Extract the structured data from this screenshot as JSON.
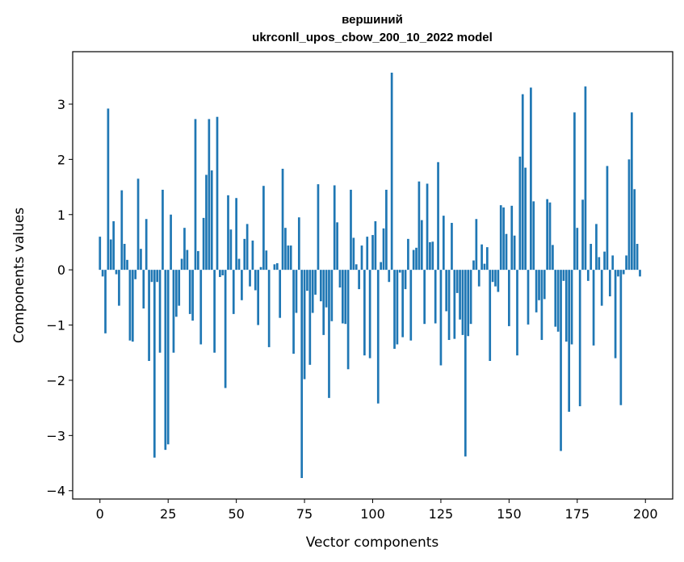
{
  "chart_data": {
    "type": "bar",
    "title_line1": "вершиний",
    "title_line2": "ukrconll_upos_cbow_200_10_2022 model",
    "xlabel": "Vector components",
    "ylabel": "Components values",
    "xlim": [
      -10,
      210
    ],
    "ylim": [
      -4.15,
      3.95
    ],
    "xticks": [
      0,
      25,
      50,
      75,
      100,
      125,
      150,
      175,
      200
    ],
    "xtick_labels": [
      "0",
      "25",
      "50",
      "75",
      "100",
      "125",
      "150",
      "175",
      "200"
    ],
    "yticks": [
      -4,
      -3,
      -2,
      -1,
      0,
      1,
      2,
      3
    ],
    "ytick_labels": [
      "−4",
      "−3",
      "−2",
      "−1",
      "0",
      "1",
      "2",
      "3"
    ],
    "grid": false,
    "color": "#1f77b4",
    "values": [
      0.6,
      -0.12,
      -1.15,
      2.92,
      0.55,
      0.88,
      -0.08,
      -0.65,
      1.44,
      0.47,
      0.18,
      -1.28,
      -1.3,
      -0.17,
      1.65,
      0.38,
      -0.7,
      0.92,
      -1.65,
      -0.22,
      -3.4,
      -0.22,
      -1.5,
      1.45,
      -3.26,
      -3.16,
      1.0,
      -1.5,
      -0.85,
      -0.65,
      0.2,
      0.76,
      0.36,
      -0.8,
      -0.92,
      2.73,
      0.34,
      -1.35,
      0.94,
      1.72,
      2.73,
      1.8,
      -1.5,
      2.77,
      -0.13,
      -0.1,
      -2.14,
      1.35,
      0.73,
      -0.8,
      1.3,
      0.2,
      -0.55,
      0.56,
      0.83,
      -0.3,
      0.53,
      -0.37,
      -1.0,
      0.05,
      1.52,
      0.35,
      -1.4,
      0.0,
      0.1,
      0.12,
      -0.87,
      1.83,
      0.76,
      0.44,
      0.44,
      -1.52,
      -0.78,
      0.95,
      -3.77,
      -1.98,
      -0.38,
      -1.72,
      -0.78,
      -0.45,
      1.55,
      -0.57,
      -1.18,
      -0.68,
      -2.32,
      -0.93,
      1.53,
      0.86,
      -0.32,
      -0.97,
      -0.98,
      -1.8,
      1.45,
      0.58,
      0.1,
      -0.35,
      0.44,
      -1.55,
      0.6,
      -1.6,
      0.63,
      0.88,
      -2.42,
      0.14,
      0.75,
      1.45,
      -0.22,
      3.57,
      -1.43,
      -1.35,
      -0.05,
      -1.22,
      -0.35,
      0.56,
      -1.28,
      0.36,
      0.4,
      1.6,
      0.9,
      -0.98,
      1.56,
      0.5,
      0.51,
      -0.97,
      1.95,
      -1.73,
      0.98,
      -0.75,
      -1.27,
      0.85,
      -1.25,
      -0.42,
      -0.9,
      -1.18,
      -3.38,
      -1.2,
      -0.98,
      0.17,
      0.92,
      -0.3,
      0.46,
      0.11,
      0.41,
      -1.65,
      -0.22,
      -0.3,
      -0.4,
      1.17,
      1.13,
      0.65,
      -1.02,
      1.16,
      0.62,
      -1.55,
      2.05,
      3.18,
      1.85,
      -0.99,
      3.3,
      1.24,
      -0.77,
      -0.55,
      -1.27,
      -0.53,
      1.28,
      1.22,
      0.45,
      -1.03,
      -1.12,
      -3.28,
      -0.2,
      -1.3,
      -2.57,
      -1.35,
      2.85,
      0.76,
      -2.47,
      1.27,
      3.32,
      -0.2,
      0.47,
      -1.37,
      0.83,
      0.23,
      -0.65,
      0.33,
      1.88,
      -0.48,
      0.26,
      -1.6,
      -0.12,
      -2.45,
      -0.08,
      0.26,
      2.0,
      2.85,
      1.46,
      0.47,
      -0.12
    ]
  }
}
